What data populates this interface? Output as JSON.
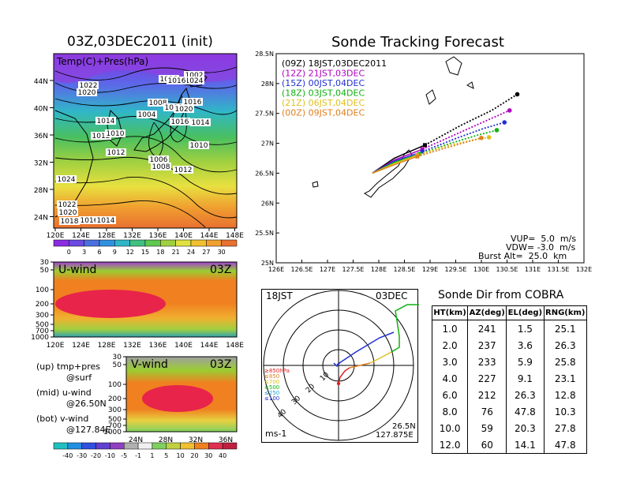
{
  "map_panel": {
    "title": "03Z,03DEC2011 (init)",
    "overlay_label": "Temp(C)+Pres(hPa)",
    "lat_labels": [
      "44N",
      "40N",
      "36N",
      "32N",
      "28N",
      "24N"
    ],
    "lon_labels": [
      "120E",
      "124E",
      "128E",
      "132E",
      "136E",
      "140E",
      "144E",
      "148E"
    ],
    "colorbar_labels": [
      "0",
      "3",
      "6",
      "9",
      "12",
      "15",
      "18",
      "21",
      "24",
      "27",
      "30"
    ],
    "pressure_labels": [
      "1022",
      "1020",
      "1018",
      "1002",
      "1024",
      "1016",
      "1008",
      "1016",
      "1010",
      "1020",
      "1004",
      "1016",
      "1014",
      "1014",
      "1012",
      "1010",
      "1010",
      "1012",
      "1006",
      "1008",
      "1012",
      "1024",
      "1022",
      "1020",
      "1018",
      "1016",
      "1014"
    ]
  },
  "uwind_panel": {
    "title": "U-wind",
    "time": "03Z",
    "p_labels": [
      "30",
      "50",
      "100",
      "200",
      "300",
      "500",
      "700",
      "1000"
    ],
    "lon_labels": [
      "120E",
      "124E",
      "128E",
      "132E",
      "136E",
      "140E",
      "144E",
      "148E"
    ]
  },
  "vwind_panel": {
    "title": "V-wind",
    "time": "03Z",
    "p_labels": [
      "30",
      "50",
      "100",
      "200",
      "300",
      "500",
      "700",
      "1000"
    ],
    "lat_labels": [
      "24N",
      "28N",
      "32N",
      "36N"
    ],
    "colorbar_labels": [
      "-40",
      "-30",
      "-20",
      "-10",
      "-5",
      "-1",
      "1",
      "5",
      "10",
      "20",
      "30",
      "40"
    ]
  },
  "notes": {
    "line1a": "(up) tmp+pres",
    "line1b": "@surf",
    "line2a": "(mid) u-wind",
    "line2b": "@26.50N",
    "line3a": "(bot) v-wind",
    "line3b": "@127.84E"
  },
  "chart_data": [
    {
      "type": "line",
      "title": "Sonde Tracking Forecast",
      "xlim": [
        126,
        132
      ],
      "ylim": [
        25,
        28.5
      ],
      "x_ticks": [
        "126E",
        "126.5E",
        "127E",
        "127.5E",
        "128E",
        "128.5E",
        "129E",
        "129.5E",
        "130E",
        "130.5E",
        "131E",
        "131.5E",
        "132E"
      ],
      "y_ticks": [
        "25N",
        "25.5N",
        "26N",
        "26.5N",
        "27N",
        "27.5N",
        "28N",
        "28.5N"
      ],
      "series": [
        {
          "name": "(09Z)  18JST,03DEC2011",
          "color": "#000000",
          "x": [
            127.875,
            128.3,
            128.9,
            129.6,
            130.2,
            130.7
          ],
          "y": [
            26.5,
            26.75,
            26.97,
            27.3,
            27.55,
            27.82
          ]
        },
        {
          "name": "(12Z)  21JST,03DEC",
          "color": "#b000c0",
          "x": [
            127.875,
            128.3,
            128.85,
            129.5,
            130.1,
            130.55
          ],
          "y": [
            26.5,
            26.72,
            26.9,
            27.15,
            27.38,
            27.55
          ]
        },
        {
          "name": "(15Z)  00JST,04DEC",
          "color": "#2030d0",
          "x": [
            127.875,
            128.3,
            128.85,
            129.5,
            130.05,
            130.45
          ],
          "y": [
            26.5,
            26.7,
            26.86,
            27.08,
            27.25,
            27.35
          ]
        },
        {
          "name": "(18Z)  03JST,04DEC",
          "color": "#10b010",
          "x": [
            127.875,
            128.3,
            128.8,
            129.4,
            129.9,
            130.3
          ],
          "y": [
            26.5,
            26.68,
            26.82,
            27.0,
            27.13,
            27.22
          ]
        },
        {
          "name": "(21Z)  06JST,04DEC",
          "color": "#e0c020",
          "x": [
            127.875,
            128.3,
            128.75,
            129.3,
            129.8,
            130.15
          ],
          "y": [
            26.5,
            26.66,
            26.8,
            26.95,
            27.05,
            27.1
          ]
        },
        {
          "name": "(00Z)  09JST,04DEC",
          "color": "#e08020",
          "x": [
            127.875,
            128.3,
            128.75,
            129.3,
            129.75,
            130.0
          ],
          "y": [
            26.5,
            26.64,
            26.78,
            26.92,
            27.03,
            27.09
          ]
        }
      ],
      "annotations": [
        "VUP=  5.0  m/s",
        "VDW= -3.0  m/s",
        "Burst Alt=  25.0  km"
      ]
    },
    {
      "type": "scatter",
      "title": "",
      "corner_labels": {
        "top_left": "18JST",
        "top_right": "03DEC",
        "bottom_left": "ms-1",
        "bottom_right_1": "26.5N",
        "bottom_right_2": "127.875E"
      },
      "ring_labels": [
        "10",
        "20",
        "30",
        "40"
      ],
      "level_legend": [
        {
          "label": "≥850hPa",
          "color": "#e02020"
        },
        {
          "label": "≤850",
          "color": "#e08020"
        },
        {
          "label": "≤700",
          "color": "#e0c020"
        },
        {
          "label": "≤500",
          "color": "#10b010"
        },
        {
          "label": "≤250",
          "color": "#20a0d0"
        },
        {
          "label": "≤100",
          "color": "#2030d0"
        }
      ]
    }
  ],
  "cobra_table": {
    "title": "Sonde Dir from COBRA",
    "headers": [
      "HT(km)",
      "AZ(deg)",
      "EL(deg)",
      "RNG(km)"
    ],
    "rows": [
      [
        "1.0",
        "241",
        "1.5",
        "25.1"
      ],
      [
        "2.0",
        "237",
        "3.6",
        "26.3"
      ],
      [
        "3.0",
        "233",
        "5.9",
        "25.8"
      ],
      [
        "4.0",
        "227",
        "9.1",
        "23.1"
      ],
      [
        "6.0",
        "212",
        "26.3",
        "12.8"
      ],
      [
        "8.0",
        "76",
        "47.8",
        "10.3"
      ],
      [
        "10.0",
        "59",
        "20.3",
        "27.8"
      ],
      [
        "12.0",
        "60",
        "14.1",
        "47.8"
      ]
    ]
  }
}
